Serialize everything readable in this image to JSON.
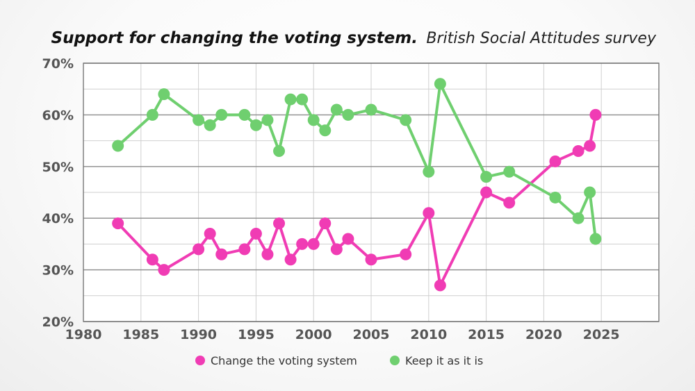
{
  "chart_data": {
    "type": "line",
    "title": "Support for changing the voting system.",
    "subtitle": "British Social Attitudes survey",
    "xlabel": "",
    "ylabel": "",
    "xlim": [
      1980,
      2030
    ],
    "ylim": [
      20,
      70
    ],
    "x_ticks": [
      1980,
      1985,
      1990,
      1995,
      2000,
      2005,
      2010,
      2015,
      2020,
      2025
    ],
    "y_ticks": [
      20,
      30,
      40,
      50,
      60,
      70
    ],
    "x_tick_labels": [
      "1980",
      "1985",
      "1990",
      "1995",
      "2000",
      "2005",
      "2010",
      "2015",
      "2020",
      "2025"
    ],
    "y_tick_labels": [
      "20%",
      "30%",
      "40%",
      "50%",
      "60%",
      "70%"
    ],
    "grid": true,
    "legend_position": "bottom",
    "series": [
      {
        "name": "Change the voting system",
        "color": "#f03cb4",
        "points": [
          [
            1983,
            39
          ],
          [
            1986,
            32
          ],
          [
            1987,
            30
          ],
          [
            1990,
            34
          ],
          [
            1991,
            37
          ],
          [
            1992,
            33
          ],
          [
            1994,
            34
          ],
          [
            1995,
            37
          ],
          [
            1996,
            33
          ],
          [
            1997,
            39
          ],
          [
            1998,
            32
          ],
          [
            1999,
            35
          ],
          [
            2000,
            35
          ],
          [
            2001,
            39
          ],
          [
            2002,
            34
          ],
          [
            2003,
            36
          ],
          [
            2005,
            32
          ],
          [
            2008,
            33
          ],
          [
            2010,
            41
          ],
          [
            2011,
            27
          ],
          [
            2015,
            45
          ],
          [
            2017,
            43
          ],
          [
            2021,
            51
          ],
          [
            2023,
            53
          ],
          [
            2024,
            54
          ],
          [
            2024.5,
            60
          ]
        ]
      },
      {
        "name": "Keep it as it is",
        "color": "#6fcf6f",
        "points": [
          [
            1983,
            54
          ],
          [
            1986,
            60
          ],
          [
            1987,
            64
          ],
          [
            1990,
            59
          ],
          [
            1991,
            58
          ],
          [
            1992,
            60
          ],
          [
            1994,
            60
          ],
          [
            1995,
            58
          ],
          [
            1996,
            59
          ],
          [
            1997,
            53
          ],
          [
            1998,
            63
          ],
          [
            1999,
            63
          ],
          [
            2000,
            59
          ],
          [
            2001,
            57
          ],
          [
            2002,
            61
          ],
          [
            2003,
            60
          ],
          [
            2005,
            61
          ],
          [
            2008,
            59
          ],
          [
            2010,
            49
          ],
          [
            2011,
            66
          ],
          [
            2015,
            48
          ],
          [
            2017,
            49
          ],
          [
            2021,
            44
          ],
          [
            2023,
            40
          ],
          [
            2024,
            45
          ],
          [
            2024.5,
            36
          ]
        ]
      }
    ]
  }
}
